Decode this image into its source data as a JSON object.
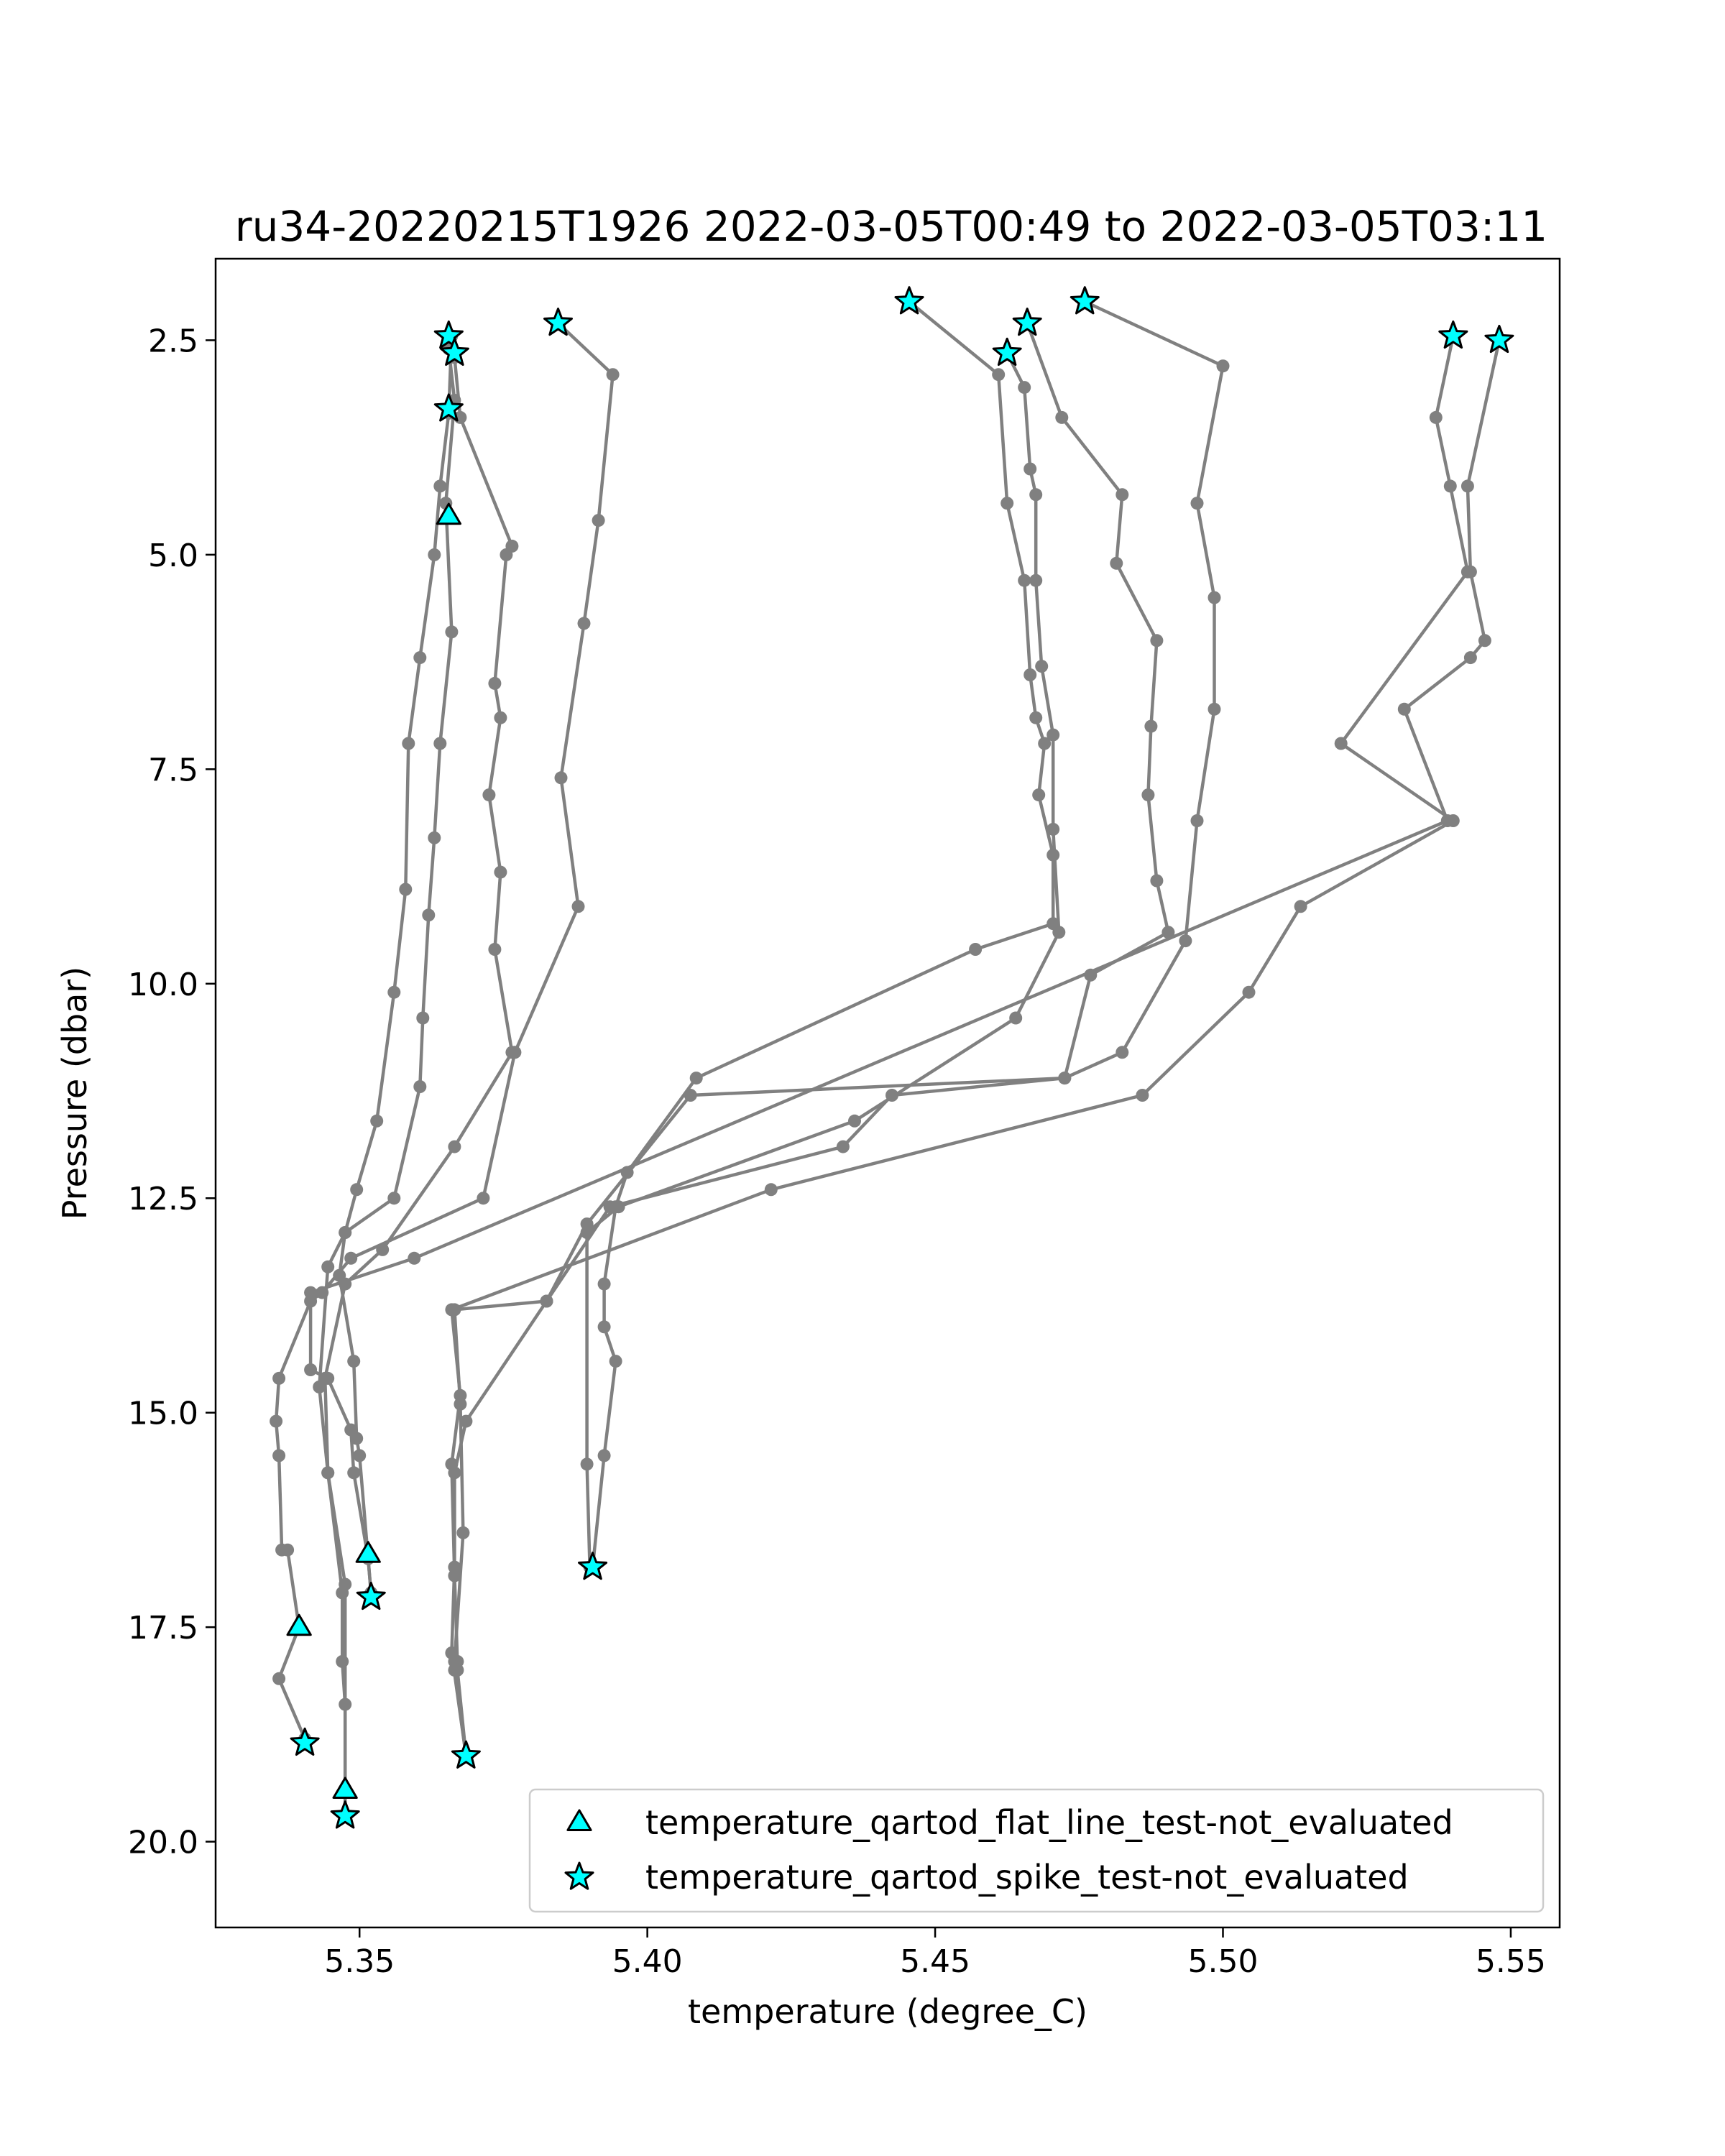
{
  "chart_data": {
    "type": "scatter",
    "title": "ru34-20220215T1926 2022-03-05T00:49 to 2022-03-05T03:11",
    "xlabel": "temperature (degree_C)",
    "ylabel": "Pressure (dbar)",
    "xlim": [
      5.325,
      5.5585
    ],
    "ylim": [
      21.0,
      1.55
    ],
    "y_inverted": true,
    "xticks": [
      "5.35",
      "5.40",
      "5.45",
      "5.50",
      "5.55"
    ],
    "xtick_values": [
      5.35,
      5.4,
      5.45,
      5.5,
      5.55
    ],
    "yticks": [
      "2.5",
      "5.0",
      "7.5",
      "10.0",
      "12.5",
      "15.0",
      "17.5",
      "20.0"
    ],
    "ytick_values": [
      2.5,
      5.0,
      7.5,
      10.0,
      12.5,
      15.0,
      17.5,
      20.0
    ],
    "grid": false,
    "legend_position": "lower-right",
    "colors": {
      "profile_line": "#808080",
      "marker_fill": "#00ffff",
      "marker_edge": "#000000",
      "axes": "#000000"
    },
    "profiles": [
      {
        "points": [
          [
            5.3655,
            2.6
          ],
          [
            5.3665,
            3.2
          ],
          [
            5.365,
            4.4
          ],
          [
            5.366,
            5.9
          ],
          [
            5.364,
            7.2
          ],
          [
            5.363,
            8.3
          ],
          [
            5.362,
            9.2
          ],
          [
            5.361,
            10.4
          ],
          [
            5.3605,
            11.2
          ],
          [
            5.356,
            12.5
          ],
          [
            5.3475,
            12.9
          ],
          [
            5.3445,
            13.3
          ],
          [
            5.343,
            14.7
          ],
          [
            5.3445,
            15.7
          ],
          [
            5.347,
            17.1
          ],
          [
            5.347,
            17.9
          ],
          [
            5.3475,
            18.4
          ],
          [
            5.3475,
            19.7
          ]
        ]
      },
      {
        "points": [
          [
            5.3665,
            2.7
          ],
          [
            5.3675,
            3.4
          ],
          [
            5.3765,
            4.9
          ],
          [
            5.3755,
            5.0
          ],
          [
            5.3735,
            6.5
          ],
          [
            5.3745,
            6.9
          ],
          [
            5.3725,
            7.8
          ],
          [
            5.3745,
            8.7
          ],
          [
            5.3735,
            9.6
          ],
          [
            5.3765,
            10.8
          ],
          [
            5.3665,
            11.9
          ],
          [
            5.354,
            13.1
          ],
          [
            5.3475,
            13.5
          ],
          [
            5.344,
            14.6
          ],
          [
            5.3445,
            15.7
          ],
          [
            5.3475,
            17.0
          ],
          [
            5.3475,
            19.4
          ]
        ]
      },
      {
        "points": [
          [
            5.366,
            2.45
          ],
          [
            5.3655,
            3.35
          ],
          [
            5.364,
            4.2
          ],
          [
            5.363,
            5.0
          ],
          [
            5.3605,
            6.2
          ],
          [
            5.3585,
            7.2
          ],
          [
            5.358,
            8.9
          ],
          [
            5.356,
            10.1
          ],
          [
            5.353,
            11.6
          ],
          [
            5.3495,
            12.4
          ],
          [
            5.3475,
            12.9
          ],
          [
            5.3465,
            13.4
          ],
          [
            5.349,
            14.4
          ],
          [
            5.3495,
            15.3
          ],
          [
            5.35,
            15.5
          ],
          [
            5.3515,
            16.7
          ],
          [
            5.352,
            17.1
          ]
        ]
      },
      {
        "points": [
          [
            5.3845,
            2.3
          ],
          [
            5.394,
            2.9
          ],
          [
            5.3915,
            4.6
          ],
          [
            5.389,
            5.8
          ],
          [
            5.385,
            7.6
          ],
          [
            5.388,
            9.1
          ],
          [
            5.377,
            10.8
          ],
          [
            5.3715,
            12.5
          ],
          [
            5.3485,
            13.2
          ],
          [
            5.3435,
            13.6
          ],
          [
            5.3415,
            13.7
          ],
          [
            5.336,
            14.6
          ],
          [
            5.3355,
            15.1
          ],
          [
            5.336,
            15.5
          ],
          [
            5.3365,
            16.6
          ],
          [
            5.3375,
            16.6
          ],
          [
            5.3395,
            17.5
          ],
          [
            5.336,
            18.1
          ],
          [
            5.3405,
            18.8
          ]
        ]
      },
      {
        "points": [
          [
            5.4455,
            2.05
          ],
          [
            5.461,
            2.9
          ],
          [
            5.4625,
            4.4
          ],
          [
            5.4655,
            5.3
          ],
          [
            5.4665,
            6.4
          ],
          [
            5.4675,
            6.9
          ],
          [
            5.469,
            7.2
          ],
          [
            5.468,
            7.8
          ],
          [
            5.4705,
            8.5
          ],
          [
            5.4705,
            9.3
          ],
          [
            5.457,
            9.6
          ],
          [
            5.4085,
            11.1
          ],
          [
            5.3965,
            12.2
          ],
          [
            5.3945,
            12.6
          ],
          [
            5.3925,
            13.5
          ],
          [
            5.3925,
            14.0
          ],
          [
            5.3945,
            14.4
          ],
          [
            5.3925,
            15.5
          ],
          [
            5.3905,
            16.8
          ]
        ]
      },
      {
        "points": [
          [
            5.4625,
            2.65
          ],
          [
            5.4655,
            3.05
          ],
          [
            5.4665,
            4.0
          ],
          [
            5.4675,
            4.3
          ],
          [
            5.4675,
            5.3
          ],
          [
            5.4685,
            6.3
          ],
          [
            5.4705,
            7.1
          ],
          [
            5.4705,
            8.2
          ],
          [
            5.4715,
            9.4
          ],
          [
            5.464,
            10.4
          ],
          [
            5.436,
            11.6
          ],
          [
            5.395,
            12.6
          ],
          [
            5.3895,
            12.9
          ],
          [
            5.3895,
            15.6
          ],
          [
            5.39,
            16.8
          ]
        ]
      },
      {
        "points": [
          [
            5.476,
            2.05
          ],
          [
            5.5,
            2.8
          ],
          [
            5.4955,
            4.4
          ],
          [
            5.4985,
            5.5
          ],
          [
            5.4985,
            6.8
          ],
          [
            5.4955,
            8.1
          ],
          [
            5.4935,
            9.5
          ],
          [
            5.4825,
            10.8
          ],
          [
            5.4725,
            11.1
          ],
          [
            5.4425,
            11.3
          ],
          [
            5.434,
            11.9
          ],
          [
            5.3935,
            12.6
          ],
          [
            5.3825,
            13.7
          ],
          [
            5.3685,
            15.1
          ],
          [
            5.3665,
            15.7
          ],
          [
            5.3665,
            16.8
          ],
          [
            5.366,
            17.8
          ],
          [
            5.3685,
            19.0
          ]
        ]
      },
      {
        "points": [
          [
            5.466,
            2.3
          ],
          [
            5.472,
            3.4
          ],
          [
            5.4825,
            4.3
          ],
          [
            5.4815,
            5.1
          ],
          [
            5.4885,
            6.0
          ],
          [
            5.4875,
            7.0
          ],
          [
            5.487,
            7.8
          ],
          [
            5.4885,
            8.8
          ],
          [
            5.4905,
            9.4
          ],
          [
            5.477,
            9.9
          ],
          [
            5.4725,
            11.1
          ],
          [
            5.4075,
            11.3
          ],
          [
            5.3895,
            12.8
          ],
          [
            5.3825,
            13.7
          ],
          [
            5.3665,
            13.8
          ],
          [
            5.3675,
            14.9
          ],
          [
            5.368,
            16.4
          ],
          [
            5.3665,
            17.9
          ],
          [
            5.3665,
            18.0
          ],
          [
            5.3685,
            19.0
          ]
        ]
      },
      {
        "points": [
          [
            5.548,
            2.5
          ],
          [
            5.5425,
            4.2
          ],
          [
            5.543,
            5.2
          ],
          [
            5.5455,
            6.0
          ],
          [
            5.543,
            6.2
          ],
          [
            5.5315,
            6.8
          ],
          [
            5.539,
            8.1
          ],
          [
            5.3595,
            13.2
          ],
          [
            5.3415,
            13.6
          ],
          [
            5.3415,
            14.5
          ],
          [
            5.3445,
            14.6
          ],
          [
            5.3485,
            15.2
          ],
          [
            5.349,
            15.7
          ],
          [
            5.3515,
            16.7
          ],
          [
            5.352,
            17.1
          ]
        ]
      },
      {
        "points": [
          [
            5.54,
            2.45
          ],
          [
            5.537,
            3.4
          ],
          [
            5.5395,
            4.2
          ],
          [
            5.5425,
            5.2
          ],
          [
            5.5205,
            7.2
          ],
          [
            5.54,
            8.1
          ],
          [
            5.5135,
            9.1
          ],
          [
            5.5045,
            10.1
          ],
          [
            5.486,
            11.3
          ],
          [
            5.4215,
            12.4
          ],
          [
            5.366,
            13.8
          ],
          [
            5.3675,
            14.8
          ],
          [
            5.366,
            15.6
          ],
          [
            5.3665,
            16.9
          ],
          [
            5.367,
            17.9
          ],
          [
            5.367,
            18.0
          ],
          [
            5.3685,
            19.0
          ]
        ]
      }
    ],
    "series": [
      {
        "name": "temperature_qartod_flat_line_test-not_evaluated",
        "marker": "triangle",
        "points": [
          [
            5.3655,
            4.55
          ],
          [
            5.3515,
            16.65
          ],
          [
            5.3395,
            17.5
          ],
          [
            5.3475,
            19.4
          ]
        ]
      },
      {
        "name": "temperature_qartod_spike_test-not_evaluated",
        "marker": "star",
        "points": [
          [
            5.3655,
            2.45
          ],
          [
            5.3665,
            2.65
          ],
          [
            5.3655,
            3.3
          ],
          [
            5.3845,
            2.3
          ],
          [
            5.4455,
            2.05
          ],
          [
            5.466,
            2.3
          ],
          [
            5.4625,
            2.65
          ],
          [
            5.476,
            2.05
          ],
          [
            5.54,
            2.45
          ],
          [
            5.548,
            2.5
          ],
          [
            5.3905,
            16.8
          ],
          [
            5.352,
            17.15
          ],
          [
            5.3405,
            18.85
          ],
          [
            5.3685,
            19.0
          ],
          [
            5.3475,
            19.7
          ]
        ]
      }
    ]
  }
}
